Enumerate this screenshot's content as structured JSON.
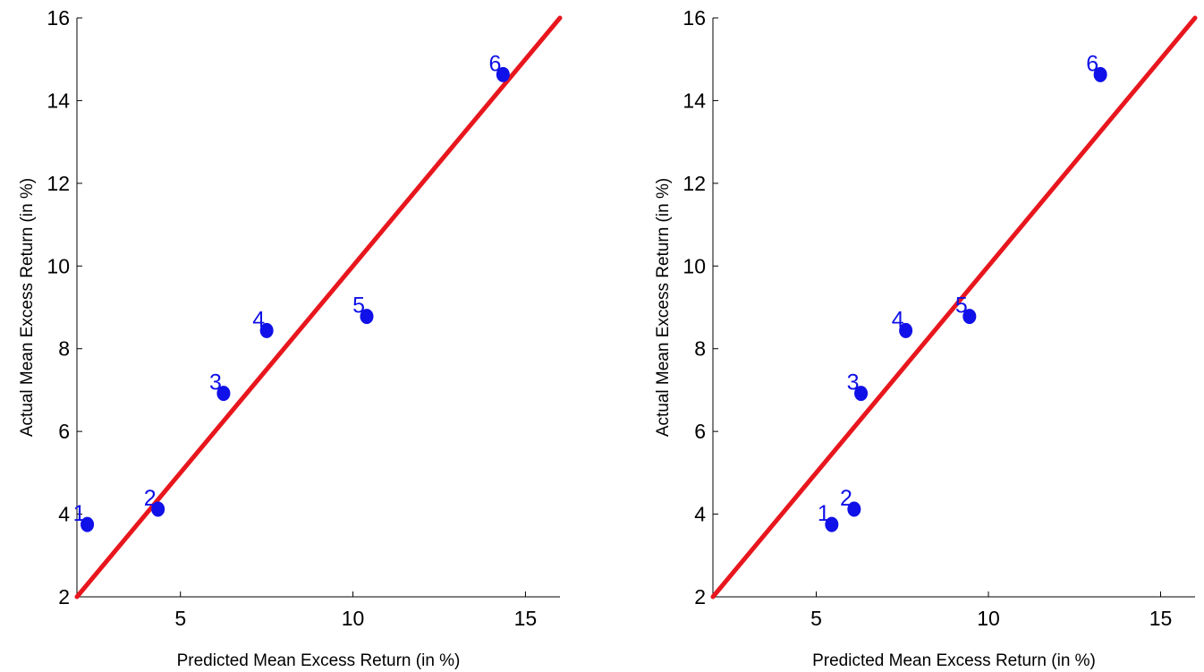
{
  "chart_data": [
    {
      "type": "scatter",
      "xlabel": "Predicted Mean Excess Return (in %)",
      "ylabel": "Actual Mean Excess Return (in %)",
      "xlim": [
        2,
        16
      ],
      "ylim": [
        2,
        16
      ],
      "xticks": [
        5,
        10,
        15
      ],
      "yticks": [
        2,
        4,
        6,
        8,
        10,
        12,
        14,
        16
      ],
      "grid": false,
      "reference_line": {
        "x": [
          2,
          16
        ],
        "y": [
          2,
          16
        ],
        "color": "#e8161d"
      },
      "point_color": "#1010e8",
      "points": [
        {
          "label": "1",
          "x": 2.3,
          "y": 3.75
        },
        {
          "label": "2",
          "x": 4.35,
          "y": 4.12
        },
        {
          "label": "3",
          "x": 6.25,
          "y": 6.92
        },
        {
          "label": "4",
          "x": 7.5,
          "y": 8.44
        },
        {
          "label": "5",
          "x": 10.4,
          "y": 8.78
        },
        {
          "label": "6",
          "x": 14.35,
          "y": 14.63
        }
      ]
    },
    {
      "type": "scatter",
      "xlabel": "Predicted Mean Excess Return (in %)",
      "ylabel": "Actual Mean Excess Return (in %)",
      "xlim": [
        2,
        16
      ],
      "ylim": [
        2,
        16
      ],
      "xticks": [
        5,
        10,
        15
      ],
      "yticks": [
        2,
        4,
        6,
        8,
        10,
        12,
        14,
        16
      ],
      "grid": false,
      "reference_line": {
        "x": [
          2,
          16
        ],
        "y": [
          2,
          16
        ],
        "color": "#e8161d"
      },
      "point_color": "#1010e8",
      "points": [
        {
          "label": "1",
          "x": 5.45,
          "y": 3.75
        },
        {
          "label": "2",
          "x": 6.1,
          "y": 4.12
        },
        {
          "label": "3",
          "x": 6.3,
          "y": 6.92
        },
        {
          "label": "4",
          "x": 7.6,
          "y": 8.44
        },
        {
          "label": "5",
          "x": 9.45,
          "y": 8.78
        },
        {
          "label": "6",
          "x": 13.25,
          "y": 14.63
        }
      ]
    }
  ]
}
